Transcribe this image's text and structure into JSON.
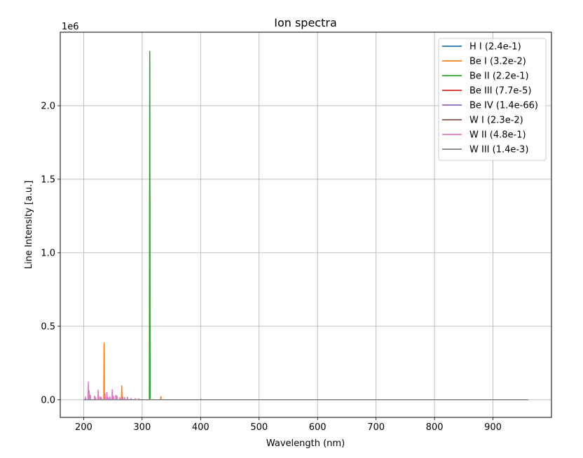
{
  "chart_data": {
    "type": "line",
    "title": "Ion spectra",
    "xlabel": "Wavelength (nm)",
    "ylabel": "Line Intensity [a.u.]",
    "y_offset_label": "1e6",
    "xlim": [
      160,
      1000
    ],
    "ylim": [
      -120000,
      2500000
    ],
    "xticks": [
      200,
      300,
      400,
      500,
      600,
      700,
      800,
      900
    ],
    "xtick_labels": [
      "200",
      "300",
      "400",
      "500",
      "600",
      "700",
      "800",
      "900"
    ],
    "yticks": [
      0,
      500000,
      1000000,
      1500000,
      2000000
    ],
    "ytick_labels": [
      "0.0",
      "0.5",
      "1.0",
      "1.5",
      "2.0"
    ],
    "grid": true,
    "legend_position": "top-right",
    "x_range": [
      200,
      960
    ],
    "series": [
      {
        "name": "H I (2.4e-1)",
        "color": "#1f77b4",
        "peaks": []
      },
      {
        "name": "Be I (3.2e-2)",
        "color": "#ff7f0e",
        "peaks": [
          [
            234.9,
            385000
          ],
          [
            265.1,
            95000
          ],
          [
            249.5,
            25000
          ],
          [
            332.1,
            22000
          ]
        ]
      },
      {
        "name": "Be II (2.2e-1)",
        "color": "#2ca02c",
        "peaks": [
          [
            313.0,
            2370000
          ],
          [
            313.1,
            2320000
          ]
        ]
      },
      {
        "name": "Be III (7.7e-5)",
        "color": "#d62728",
        "peaks": []
      },
      {
        "name": "Be IV (1.4e-66)",
        "color": "#9467bd",
        "peaks": []
      },
      {
        "name": "W I (2.3e-2)",
        "color": "#8c564b",
        "peaks": [
          [
            294.4,
            5000
          ],
          [
            400.9,
            3000
          ]
        ]
      },
      {
        "name": "W II (4.8e-1)",
        "color": "#e377c2",
        "peaks": [
          [
            207.9,
            120000
          ],
          [
            209.5,
            60000
          ],
          [
            211.6,
            30000
          ],
          [
            203.0,
            20000
          ],
          [
            218.9,
            25000
          ],
          [
            220.4,
            15000
          ],
          [
            224.9,
            65000
          ],
          [
            228.0,
            20000
          ],
          [
            230.0,
            15000
          ],
          [
            236.5,
            40000
          ],
          [
            239.7,
            50000
          ],
          [
            242.0,
            15000
          ],
          [
            245.0,
            20000
          ],
          [
            248.9,
            70000
          ],
          [
            251.0,
            25000
          ],
          [
            255.0,
            30000
          ],
          [
            257.0,
            25000
          ],
          [
            262.0,
            15000
          ],
          [
            267.0,
            20000
          ],
          [
            270.0,
            15000
          ],
          [
            275.0,
            18000
          ],
          [
            281.0,
            10000
          ],
          [
            288.0,
            8000
          ]
        ]
      },
      {
        "name": "W III (1.4e-3)",
        "color": "#7f7f7f",
        "peaks": []
      }
    ]
  }
}
